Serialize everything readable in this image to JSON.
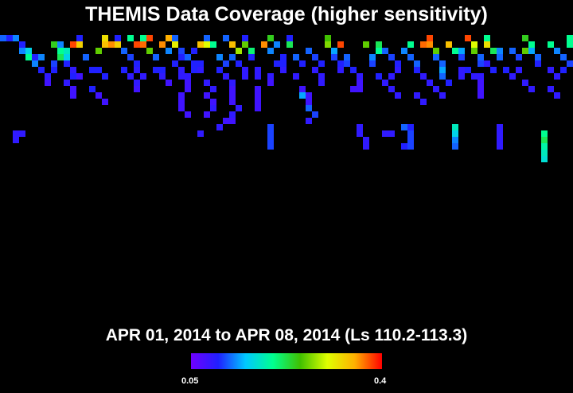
{
  "title": "THEMIS Data Coverage (higher sensitivity)",
  "subtitle": "APR 01, 2014 to APR 08, 2014 (Ls 110.2-113.3)",
  "colorbar": {
    "min_label": "0.05",
    "max_label": "0.4",
    "min_value": 0.05,
    "max_value": 0.4,
    "palette": [
      "#7000ff",
      "#2020ff",
      "#00c8ff",
      "#00ff90",
      "#40c000",
      "#e0ff00",
      "#ffb000",
      "#ff0000"
    ]
  },
  "coverage": {
    "background": "#000000",
    "grid_columns": 90,
    "grid_rows": 44,
    "cells": [
      [
        0,
        0,
        0.12
      ],
      [
        1,
        0,
        0.1
      ],
      [
        2,
        0,
        0.13
      ],
      [
        3,
        1,
        0.1
      ],
      [
        3,
        2,
        0.13
      ],
      [
        4,
        2,
        0.16
      ],
      [
        5,
        3,
        0.1
      ],
      [
        6,
        3,
        0.13
      ],
      [
        8,
        4,
        0.11
      ],
      [
        8,
        5,
        0.1
      ],
      [
        9,
        1,
        0.13
      ],
      [
        9,
        2,
        0.2
      ],
      [
        10,
        4,
        0.1
      ],
      [
        11,
        1,
        0.38
      ],
      [
        12,
        0,
        0.1
      ],
      [
        12,
        1,
        0.33
      ],
      [
        13,
        3,
        0.12
      ],
      [
        14,
        5,
        0.1
      ],
      [
        8,
        1,
        0.24
      ],
      [
        9,
        3,
        0.22
      ],
      [
        10,
        2,
        0.18
      ],
      [
        10,
        3,
        0.16
      ],
      [
        11,
        5,
        0.09
      ],
      [
        11,
        6,
        0.1
      ],
      [
        12,
        6,
        0.08
      ],
      [
        15,
        2,
        0.26
      ],
      [
        16,
        0,
        0.32
      ],
      [
        16,
        1,
        0.34
      ],
      [
        15,
        5,
        0.1
      ],
      [
        16,
        6,
        0.1
      ],
      [
        17,
        1,
        0.36
      ],
      [
        18,
        0,
        0.1
      ],
      [
        18,
        1,
        0.33
      ],
      [
        19,
        2,
        0.12
      ],
      [
        20,
        3,
        0.11
      ],
      [
        21,
        4,
        0.1
      ],
      [
        21,
        5,
        0.09
      ],
      [
        22,
        6,
        0.09
      ],
      [
        20,
        0,
        0.2
      ],
      [
        21,
        1,
        0.38
      ],
      [
        22,
        1,
        0.37
      ],
      [
        23,
        2,
        0.26
      ],
      [
        24,
        3,
        0.12
      ],
      [
        25,
        5,
        0.1
      ],
      [
        22,
        0,
        0.2
      ],
      [
        23,
        0,
        0.38
      ],
      [
        25,
        1,
        0.36
      ],
      [
        26,
        2,
        0.13
      ],
      [
        27,
        1,
        0.31
      ],
      [
        28,
        2,
        0.11
      ],
      [
        28,
        3,
        0.1
      ],
      [
        27,
        4,
        0.1
      ],
      [
        28,
        5,
        0.09
      ],
      [
        28,
        6,
        0.09
      ],
      [
        29,
        6,
        0.09
      ],
      [
        29,
        7,
        0.08
      ],
      [
        29,
        8,
        0.08
      ],
      [
        28,
        9,
        0.08
      ],
      [
        28,
        10,
        0.08
      ],
      [
        26,
        0,
        0.35
      ],
      [
        27,
        0,
        0.12
      ],
      [
        29,
        3,
        0.12
      ],
      [
        30,
        2,
        0.1
      ],
      [
        31,
        1,
        0.34
      ],
      [
        32,
        0,
        0.12
      ],
      [
        32,
        1,
        0.3
      ],
      [
        31,
        4,
        0.1
      ],
      [
        31,
        5,
        0.09
      ],
      [
        32,
        7,
        0.09
      ],
      [
        33,
        8,
        0.09
      ],
      [
        32,
        9,
        0.08
      ],
      [
        33,
        10,
        0.08
      ],
      [
        33,
        11,
        0.09
      ],
      [
        32,
        12,
        0.08
      ],
      [
        33,
        1,
        0.2
      ],
      [
        34,
        3,
        0.13
      ],
      [
        35,
        4,
        0.11
      ],
      [
        34,
        5,
        0.1
      ],
      [
        35,
        6,
        0.09
      ],
      [
        35,
        0,
        0.12
      ],
      [
        36,
        1,
        0.34
      ],
      [
        37,
        2,
        0.28
      ],
      [
        36,
        3,
        0.12
      ],
      [
        37,
        4,
        0.1
      ],
      [
        38,
        5,
        0.09
      ],
      [
        38,
        6,
        0.09
      ],
      [
        36,
        7,
        0.09
      ],
      [
        36,
        8,
        0.08
      ],
      [
        36,
        9,
        0.08
      ],
      [
        36,
        10,
        0.08
      ],
      [
        37,
        11,
        0.09
      ],
      [
        36,
        12,
        0.09
      ],
      [
        36,
        13,
        0.08
      ],
      [
        38,
        0,
        0.1
      ],
      [
        38,
        1,
        0.26
      ],
      [
        39,
        2,
        0.21
      ],
      [
        39,
        3,
        0.1
      ],
      [
        40,
        5,
        0.09
      ],
      [
        40,
        6,
        0.09
      ],
      [
        40,
        8,
        0.08
      ],
      [
        40,
        9,
        0.08
      ],
      [
        40,
        10,
        0.08
      ],
      [
        40,
        11,
        0.08
      ],
      [
        42,
        0,
        0.24
      ],
      [
        41,
        1,
        0.36
      ],
      [
        42,
        2,
        0.13
      ],
      [
        43,
        1,
        0.13
      ],
      [
        43,
        4,
        0.1
      ],
      [
        42,
        6,
        0.09
      ],
      [
        42,
        7,
        0.08
      ],
      [
        42,
        14,
        0.11
      ],
      [
        42,
        15,
        0.11
      ],
      [
        42,
        16,
        0.11
      ],
      [
        42,
        17,
        0.11
      ],
      [
        45,
        0,
        0.1
      ],
      [
        45,
        1,
        0.22
      ],
      [
        46,
        3,
        0.12
      ],
      [
        47,
        4,
        0.1
      ],
      [
        46,
        6,
        0.09
      ],
      [
        47,
        8,
        0.08
      ],
      [
        48,
        9,
        0.08
      ],
      [
        48,
        10,
        0.08
      ],
      [
        48,
        2,
        0.12
      ],
      [
        49,
        3,
        0.11
      ],
      [
        50,
        4,
        0.1
      ],
      [
        49,
        5,
        0.09
      ],
      [
        50,
        6,
        0.09
      ],
      [
        50,
        7,
        0.09
      ],
      [
        51,
        0,
        0.25
      ],
      [
        51,
        1,
        0.27
      ],
      [
        52,
        2,
        0.14
      ],
      [
        52,
        3,
        0.11
      ],
      [
        53,
        4,
        0.1
      ],
      [
        53,
        5,
        0.09
      ],
      [
        47,
        9,
        0.14
      ],
      [
        48,
        11,
        0.12
      ],
      [
        49,
        12,
        0.11
      ],
      [
        48,
        13,
        0.09
      ],
      [
        53,
        1,
        0.38
      ],
      [
        54,
        3,
        0.12
      ],
      [
        54,
        4,
        0.11
      ],
      [
        55,
        5,
        0.1
      ],
      [
        56,
        6,
        0.09
      ],
      [
        56,
        7,
        0.08
      ],
      [
        56,
        8,
        0.08
      ],
      [
        55,
        8,
        0.08
      ],
      [
        56,
        14,
        0.09
      ],
      [
        56,
        15,
        0.09
      ],
      [
        57,
        16,
        0.09
      ],
      [
        57,
        17,
        0.09
      ],
      [
        57,
        1,
        0.26
      ],
      [
        58,
        3,
        0.13
      ],
      [
        58,
        4,
        0.11
      ],
      [
        59,
        6,
        0.1
      ],
      [
        60,
        7,
        0.09
      ],
      [
        60,
        2,
        0.12
      ],
      [
        61,
        3,
        0.11
      ],
      [
        62,
        4,
        0.1
      ],
      [
        62,
        5,
        0.09
      ],
      [
        61,
        6,
        0.09
      ],
      [
        64,
        1,
        0.2
      ],
      [
        63,
        2,
        0.13
      ],
      [
        64,
        3,
        0.12
      ],
      [
        65,
        4,
        0.12
      ],
      [
        65,
        5,
        0.1
      ],
      [
        66,
        6,
        0.09
      ],
      [
        67,
        7,
        0.09
      ],
      [
        63,
        14,
        0.12
      ],
      [
        64,
        15,
        0.11
      ],
      [
        64,
        16,
        0.11
      ],
      [
        64,
        17,
        0.11
      ],
      [
        63,
        17,
        0.1
      ],
      [
        66,
        1,
        0.37
      ],
      [
        67,
        0,
        0.38
      ],
      [
        67,
        1,
        0.36
      ],
      [
        68,
        2,
        0.26
      ],
      [
        68,
        3,
        0.12
      ],
      [
        69,
        4,
        0.12
      ],
      [
        69,
        5,
        0.14
      ],
      [
        69,
        6,
        0.12
      ],
      [
        70,
        7,
        0.1
      ],
      [
        70,
        1,
        0.34
      ],
      [
        71,
        2,
        0.2
      ],
      [
        72,
        2,
        0.14
      ],
      [
        72,
        3,
        0.11
      ],
      [
        72,
        5,
        0.09
      ],
      [
        72,
        6,
        0.09
      ],
      [
        71,
        14,
        0.18
      ],
      [
        71,
        15,
        0.16
      ],
      [
        71,
        16,
        0.13
      ],
      [
        71,
        17,
        0.12
      ],
      [
        73,
        0,
        0.38
      ],
      [
        74,
        1,
        0.3
      ],
      [
        74,
        2,
        0.26
      ],
      [
        75,
        3,
        0.12
      ],
      [
        75,
        4,
        0.11
      ],
      [
        76,
        4,
        0.09
      ],
      [
        75,
        6,
        0.09
      ],
      [
        75,
        7,
        0.08
      ],
      [
        75,
        8,
        0.08
      ],
      [
        75,
        9,
        0.08
      ],
      [
        76,
        0,
        0.2
      ],
      [
        76,
        1,
        0.32
      ],
      [
        77,
        2,
        0.22
      ],
      [
        78,
        2,
        0.13
      ],
      [
        78,
        3,
        0.12
      ],
      [
        77,
        5,
        0.1
      ],
      [
        78,
        14,
        0.09
      ],
      [
        78,
        15,
        0.09
      ],
      [
        78,
        16,
        0.09
      ],
      [
        78,
        17,
        0.09
      ],
      [
        80,
        2,
        0.12
      ],
      [
        81,
        3,
        0.11
      ],
      [
        81,
        5,
        0.09
      ],
      [
        82,
        0,
        0.24
      ],
      [
        83,
        1,
        0.2
      ],
      [
        82,
        2,
        0.26
      ],
      [
        83,
        2,
        0.14
      ],
      [
        84,
        3,
        0.12
      ],
      [
        84,
        4,
        0.1
      ],
      [
        85,
        15,
        0.2
      ],
      [
        85,
        16,
        0.22
      ],
      [
        85,
        17,
        0.19
      ],
      [
        85,
        18,
        0.18
      ],
      [
        85,
        19,
        0.17
      ],
      [
        86,
        1,
        0.2
      ],
      [
        87,
        2,
        0.13
      ],
      [
        88,
        3,
        0.12
      ],
      [
        89,
        4,
        0.11
      ],
      [
        88,
        5,
        0.1
      ],
      [
        89,
        0,
        0.2
      ],
      [
        89,
        1,
        0.2
      ],
      [
        86,
        5,
        0.09
      ],
      [
        87,
        6,
        0.09
      ],
      [
        2,
        15,
        0.09
      ],
      [
        3,
        15,
        0.09
      ],
      [
        2,
        16,
        0.09
      ],
      [
        4,
        3,
        0.2
      ],
      [
        5,
        4,
        0.13
      ],
      [
        6,
        5,
        0.1
      ],
      [
        7,
        6,
        0.09
      ],
      [
        7,
        7,
        0.08
      ],
      [
        10,
        7,
        0.09
      ],
      [
        11,
        8,
        0.08
      ],
      [
        11,
        9,
        0.08
      ],
      [
        14,
        8,
        0.1
      ],
      [
        15,
        9,
        0.08
      ],
      [
        16,
        10,
        0.08
      ],
      [
        19,
        5,
        0.1
      ],
      [
        20,
        6,
        0.09
      ],
      [
        21,
        7,
        0.09
      ],
      [
        21,
        8,
        0.08
      ],
      [
        24,
        5,
        0.1
      ],
      [
        25,
        6,
        0.09
      ],
      [
        26,
        7,
        0.08
      ],
      [
        28,
        11,
        0.08
      ],
      [
        29,
        12,
        0.08
      ],
      [
        30,
        4,
        0.1
      ],
      [
        30,
        5,
        0.1
      ],
      [
        34,
        14,
        0.09
      ],
      [
        35,
        13,
        0.08
      ],
      [
        31,
        15,
        0.09
      ],
      [
        44,
        3,
        0.1
      ],
      [
        44,
        4,
        0.1
      ],
      [
        44,
        5,
        0.09
      ],
      [
        59,
        1,
        0.22
      ],
      [
        59,
        2,
        0.2
      ],
      [
        61,
        8,
        0.09
      ],
      [
        62,
        9,
        0.09
      ],
      [
        65,
        9,
        0.09
      ],
      [
        66,
        10,
        0.09
      ],
      [
        68,
        8,
        0.09
      ],
      [
        69,
        9,
        0.09
      ],
      [
        73,
        5,
        0.1
      ],
      [
        74,
        6,
        0.09
      ],
      [
        79,
        5,
        0.1
      ],
      [
        80,
        6,
        0.09
      ],
      [
        82,
        7,
        0.09
      ],
      [
        83,
        8,
        0.09
      ],
      [
        86,
        8,
        0.09
      ],
      [
        87,
        9,
        0.09
      ],
      [
        64,
        14,
        0.1
      ],
      [
        60,
        15,
        0.09
      ],
      [
        61,
        15,
        0.09
      ]
    ]
  }
}
